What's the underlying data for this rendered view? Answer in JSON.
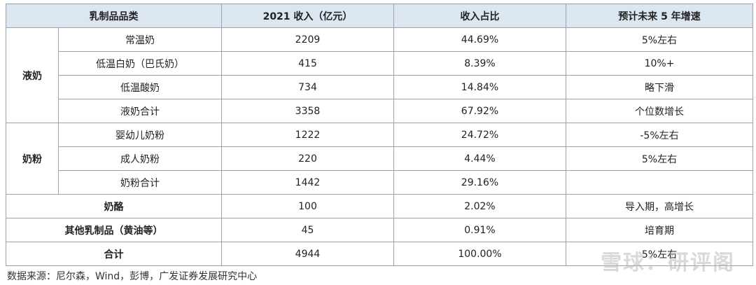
{
  "table": {
    "header": [
      "乳制品品类",
      "2021 收入（亿元）",
      "收入占比",
      "预计未来 5 年增速"
    ],
    "sections": [
      {
        "group": "液奶",
        "rows": [
          [
            "常温奶",
            2209,
            "44.69%",
            "5%左右"
          ],
          [
            "低温白奶（巴氏奶）",
            415,
            "8.39%",
            "10%+"
          ],
          [
            "低温酸奶",
            734,
            "14.84%",
            "略下滑"
          ],
          [
            "液奶合计",
            3358,
            "67.92%",
            "个位数增长"
          ]
        ]
      },
      {
        "group": "奶粉",
        "rows": [
          [
            "婴幼儿奶粉",
            1222,
            "24.72%",
            "-5%左右"
          ],
          [
            "成人奶粉",
            220,
            "4.44%",
            "5%左右"
          ],
          [
            "奶粉合计",
            1442,
            "29.16%",
            null
          ]
        ]
      },
      {
        "rows": [
          [
            "奶酪",
            100,
            "2.02%",
            "导入期，高增长"
          ]
        ]
      },
      {
        "rows": [
          [
            "其他乳制品（黄油等）",
            45,
            "0.91%",
            "培育期"
          ]
        ]
      },
      {
        "rows": [
          [
            "合计",
            4944,
            "100.00%",
            "5%左右"
          ]
        ]
      }
    ]
  },
  "source": "数据来源：尼尔森，Wind，彭博，广发证券发展研究中心",
  "watermark": "雪球：研评阁"
}
